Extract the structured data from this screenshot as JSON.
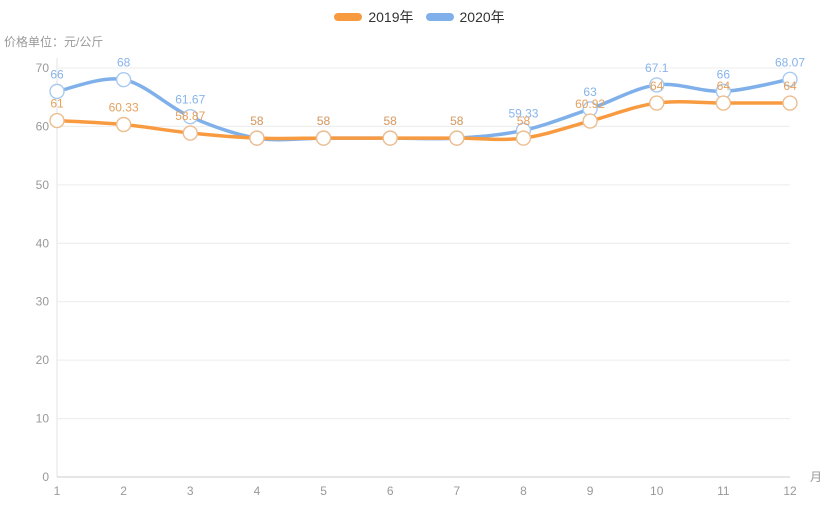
{
  "chart_data": {
    "type": "line",
    "smooth": true,
    "categories": [
      "1",
      "2",
      "3",
      "4",
      "5",
      "6",
      "7",
      "8",
      "9",
      "10",
      "11",
      "12"
    ],
    "series": [
      {
        "name": "2019年",
        "color": "#f89b40",
        "marker_border_color": "#ecbd8f",
        "label_color": "#e5a15f",
        "values": [
          61,
          60.33,
          58.87,
          58,
          58,
          58,
          58,
          58,
          60.92,
          64,
          64,
          64
        ],
        "labels": [
          "61",
          "60.33",
          "58.87",
          "58",
          "58",
          "58",
          "58",
          "58",
          "60.92",
          "64",
          "64",
          "64"
        ]
      },
      {
        "name": "2020年",
        "color": "#7fb0ea",
        "marker_border_color": "#a9caf0",
        "label_color": "#86b4ec",
        "values": [
          66,
          68,
          61.67,
          58,
          58,
          58,
          58,
          59.33,
          63,
          67.1,
          66,
          68.07
        ],
        "labels": [
          "66",
          "68",
          "61.67",
          "58",
          "58",
          "58",
          "58",
          "59.33",
          "63",
          "67.1",
          "66",
          "68.07"
        ]
      }
    ],
    "title": "",
    "xlabel": "月",
    "ylabel": "价格单位：元/公斤",
    "ylim": [
      0,
      70
    ],
    "yticks": [
      0,
      10,
      20,
      30,
      40,
      50,
      60,
      70
    ],
    "grid": "horizontal-only",
    "legend_position": "top-center",
    "marker": "hollow-circle",
    "axis_text_color": "#999",
    "grid_line_color": "#ececec",
    "axis_line_color": "#ccc",
    "y_axis_line_color": "#e3e3e3"
  }
}
